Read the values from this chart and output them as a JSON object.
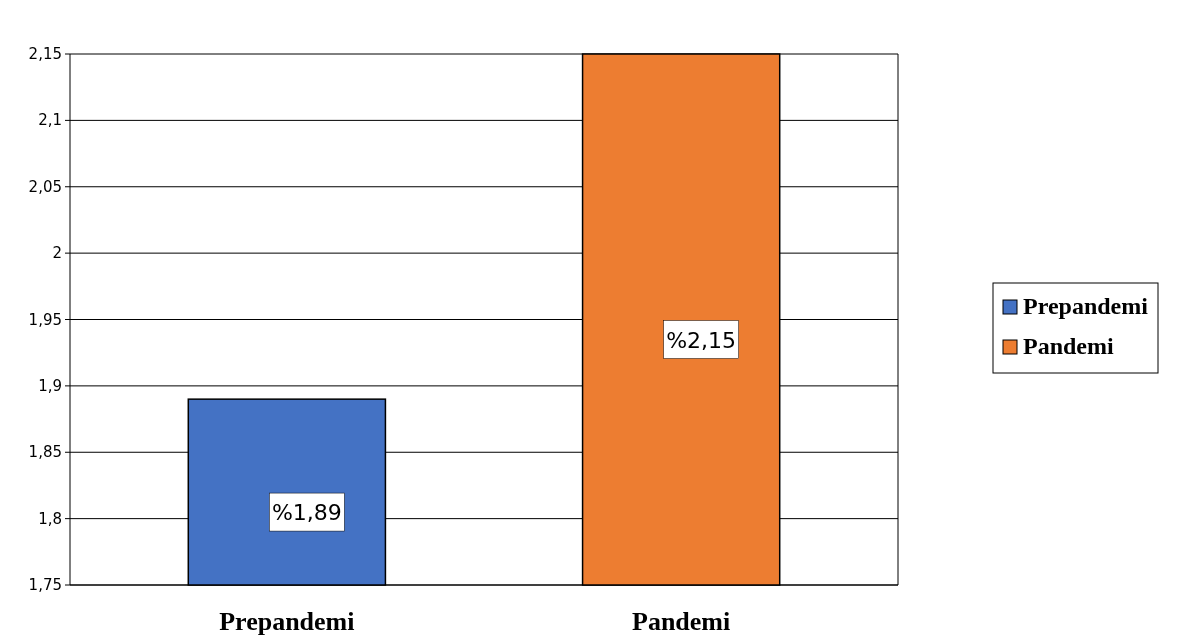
{
  "chart_data": {
    "type": "bar",
    "categories": [
      "Prepandemi",
      "Pandemi"
    ],
    "series": [
      {
        "name": "Prepandemi",
        "color": "#4472c4",
        "values": [
          1.89,
          null
        ],
        "value_labels": [
          "%1,89",
          null
        ]
      },
      {
        "name": "Pandemi",
        "color": "#ed7d31",
        "values": [
          null,
          2.15
        ],
        "value_labels": [
          null,
          "%2,15"
        ]
      }
    ],
    "ylim": [
      1.75,
      2.15
    ],
    "yticks": [
      {
        "value": 1.75,
        "label": "1,75"
      },
      {
        "value": 1.8,
        "label": "1,8"
      },
      {
        "value": 1.85,
        "label": "1,85"
      },
      {
        "value": 1.9,
        "label": "1,9"
      },
      {
        "value": 1.95,
        "label": "1,95"
      },
      {
        "value": 2,
        "label": "2"
      },
      {
        "value": 2.05,
        "label": "2,05"
      },
      {
        "value": 2.1,
        "label": "2,1"
      },
      {
        "value": 2.15,
        "label": "2,15"
      }
    ],
    "grid": "y",
    "legend": "right"
  }
}
